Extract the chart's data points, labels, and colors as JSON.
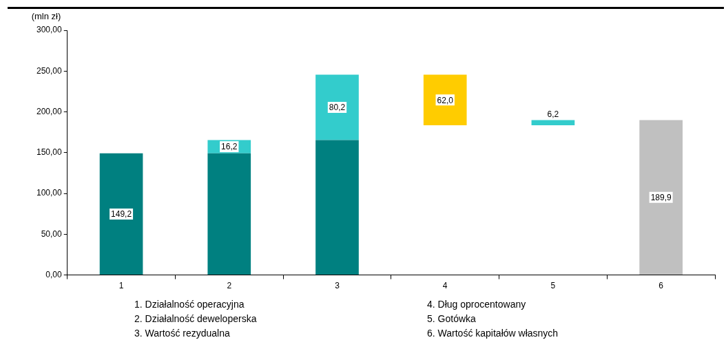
{
  "chart_data": {
    "type": "bar",
    "ylabel": "(mln zł)",
    "categories": [
      "1",
      "2",
      "3",
      "4",
      "5",
      "6"
    ],
    "series": [
      {
        "color": "#008080",
        "values": [
          149.2,
          149.2,
          165.4,
          null,
          null,
          null
        ],
        "base": [
          0,
          0,
          0,
          null,
          null,
          null
        ],
        "value_labels": [
          "149,2",
          null,
          null,
          null,
          null,
          null
        ]
      },
      {
        "color": "#33cccc",
        "values": [
          null,
          16.2,
          80.2,
          null,
          6.2,
          null
        ],
        "base": [
          null,
          149.2,
          165.4,
          null,
          183.6,
          null
        ],
        "value_labels": [
          null,
          "16,2",
          "80,2",
          null,
          "6,2",
          null
        ]
      },
      {
        "color": "#ffcc00",
        "values": [
          null,
          null,
          null,
          62.0,
          null,
          null
        ],
        "base": [
          null,
          null,
          null,
          183.6,
          null,
          null
        ],
        "value_labels": [
          null,
          null,
          null,
          "62,0",
          null,
          null
        ]
      },
      {
        "color": "#c0c0c0",
        "values": [
          null,
          null,
          null,
          null,
          null,
          189.9
        ],
        "base": [
          null,
          null,
          null,
          null,
          null,
          0
        ],
        "value_labels": [
          null,
          null,
          null,
          null,
          null,
          "189,9"
        ]
      }
    ],
    "ylim": [
      0,
      300
    ],
    "yticks": [
      {
        "value": 0,
        "label": "0,00"
      },
      {
        "value": 50,
        "label": "50,00"
      },
      {
        "value": 100,
        "label": "100,00"
      },
      {
        "value": 150,
        "label": "150,00"
      },
      {
        "value": 200,
        "label": "200,00"
      },
      {
        "value": 250,
        "label": "250,00"
      },
      {
        "value": 300,
        "label": "300,00"
      }
    ],
    "grid": false,
    "legend": false,
    "annotations": [
      "1. Działalność operacyjna",
      "2. Działalność deweloperska",
      "3. Wartość rezydualna",
      "4. Dług oprocentowany",
      "5. Gotówka",
      "6. Wartość kapitałów własnych"
    ]
  }
}
